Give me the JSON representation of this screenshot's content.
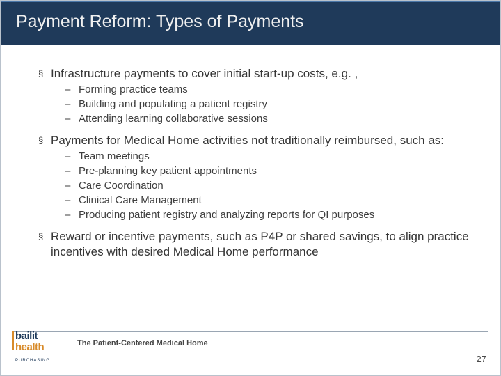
{
  "title": "Payment Reform: Types of Payments",
  "colors": {
    "titlebar_bg": "#1f3a5a",
    "titlebar_accent": "#4b77a8",
    "text": "#3a3a3a",
    "logo_dark": "#1f3a5a",
    "logo_orange": "#d88b2a"
  },
  "bullets": [
    {
      "text": "Infrastructure payments to cover initial start-up costs, e.g. ,",
      "sub": [
        "Forming practice teams",
        "Building and populating a patient registry",
        "Attending learning collaborative sessions"
      ]
    },
    {
      "text": "Payments for Medical Home activities not traditionally reimbursed, such as:",
      "sub": [
        "Team meetings",
        "Pre-planning key patient appointments",
        "Care Coordination",
        "Clinical Care Management",
        "Producing patient registry and analyzing reports for QI purposes"
      ]
    },
    {
      "text": "Reward or incentive payments, such as P4P or shared savings, to align practice incentives with desired Medical Home performance",
      "sub": []
    }
  ],
  "footer": "The Patient-Centered Medical Home",
  "page": "27",
  "logo": {
    "line1a": "bailit",
    "line1b": "health",
    "line2": "PURCHASING"
  }
}
